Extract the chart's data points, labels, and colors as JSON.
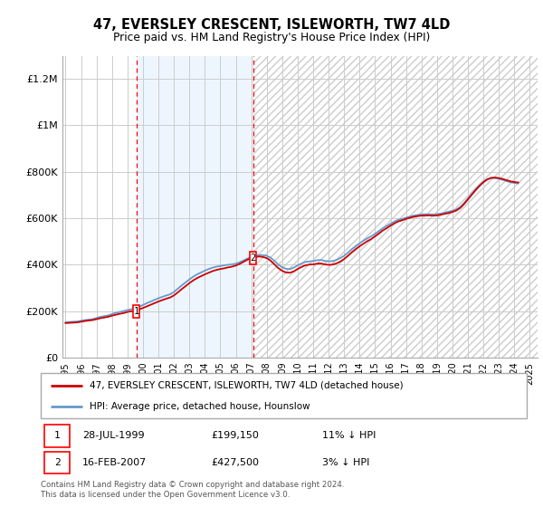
{
  "title": "47, EVERSLEY CRESCENT, ISLEWORTH, TW7 4LD",
  "subtitle": "Price paid vs. HM Land Registry's House Price Index (HPI)",
  "title_fontsize": 11,
  "subtitle_fontsize": 9.5,
  "ylabel_ticks": [
    "£0",
    "£200K",
    "£400K",
    "£600K",
    "£800K",
    "£1M",
    "£1.2M"
  ],
  "ytick_values": [
    0,
    200000,
    400000,
    600000,
    800000,
    1000000,
    1200000
  ],
  "ylim": [
    0,
    1300000
  ],
  "xlim_start": 1994.8,
  "xlim_end": 2025.5,
  "xticks": [
    1995,
    1996,
    1997,
    1998,
    1999,
    2000,
    2001,
    2002,
    2003,
    2004,
    2005,
    2006,
    2007,
    2008,
    2009,
    2010,
    2011,
    2012,
    2013,
    2014,
    2015,
    2016,
    2017,
    2018,
    2019,
    2020,
    2021,
    2022,
    2023,
    2024,
    2025
  ],
  "background_color": "#ffffff",
  "grid_color": "#cccccc",
  "hpi_line_color": "#6699cc",
  "price_line_color": "#cc0000",
  "shade_color": "#ddeeff",
  "shade_alpha": 0.5,
  "sale1_date_num": 1999.57,
  "sale1_price": 199150,
  "sale1_label": "28-JUL-1999",
  "sale1_price_label": "£199,150",
  "sale1_hpi_label": "11% ↓ HPI",
  "sale2_date_num": 2007.12,
  "sale2_price": 427500,
  "sale2_label": "16-FEB-2007",
  "sale2_price_label": "£427,500",
  "sale2_hpi_label": "3% ↓ HPI",
  "legend_line1": "47, EVERSLEY CRESCENT, ISLEWORTH, TW7 4LD (detached house)",
  "legend_line2": "HPI: Average price, detached house, Hounslow",
  "footer_line1": "Contains HM Land Registry data © Crown copyright and database right 2024.",
  "footer_line2": "This data is licensed under the Open Government Licence v3.0.",
  "hpi_years": [
    1995.0,
    1995.25,
    1995.5,
    1995.75,
    1996.0,
    1996.25,
    1996.5,
    1996.75,
    1997.0,
    1997.25,
    1997.5,
    1997.75,
    1998.0,
    1998.25,
    1998.5,
    1998.75,
    1999.0,
    1999.25,
    1999.5,
    1999.75,
    2000.0,
    2000.25,
    2000.5,
    2000.75,
    2001.0,
    2001.25,
    2001.5,
    2001.75,
    2002.0,
    2002.25,
    2002.5,
    2002.75,
    2003.0,
    2003.25,
    2003.5,
    2003.75,
    2004.0,
    2004.25,
    2004.5,
    2004.75,
    2005.0,
    2005.25,
    2005.5,
    2005.75,
    2006.0,
    2006.25,
    2006.5,
    2006.75,
    2007.0,
    2007.25,
    2007.5,
    2007.75,
    2008.0,
    2008.25,
    2008.5,
    2008.75,
    2009.0,
    2009.25,
    2009.5,
    2009.75,
    2010.0,
    2010.25,
    2010.5,
    2010.75,
    2011.0,
    2011.25,
    2011.5,
    2011.75,
    2012.0,
    2012.25,
    2012.5,
    2012.75,
    2013.0,
    2013.25,
    2013.5,
    2013.75,
    2014.0,
    2014.25,
    2014.5,
    2014.75,
    2015.0,
    2015.25,
    2015.5,
    2015.75,
    2016.0,
    2016.25,
    2016.5,
    2016.75,
    2017.0,
    2017.25,
    2017.5,
    2017.75,
    2018.0,
    2018.25,
    2018.5,
    2018.75,
    2019.0,
    2019.25,
    2019.5,
    2019.75,
    2020.0,
    2020.25,
    2020.5,
    2020.75,
    2021.0,
    2021.25,
    2021.5,
    2021.75,
    2022.0,
    2022.25,
    2022.5,
    2022.75,
    2023.0,
    2023.25,
    2023.5,
    2023.75,
    2024.0,
    2024.25
  ],
  "hpi_values": [
    152000,
    153000,
    154000,
    155000,
    158000,
    161000,
    163000,
    165000,
    170000,
    175000,
    178000,
    181000,
    187000,
    192000,
    196000,
    200000,
    204000,
    208000,
    212000,
    218000,
    226000,
    234000,
    241000,
    248000,
    255000,
    261000,
    267000,
    272000,
    282000,
    296000,
    310000,
    323000,
    336000,
    348000,
    358000,
    366000,
    374000,
    381000,
    387000,
    391000,
    394000,
    397000,
    399000,
    401000,
    404000,
    410000,
    418000,
    426000,
    433000,
    438000,
    441000,
    441000,
    438000,
    430000,
    416000,
    400000,
    388000,
    382000,
    381000,
    387000,
    397000,
    405000,
    411000,
    414000,
    415000,
    419000,
    420000,
    416000,
    414000,
    415000,
    420000,
    428000,
    438000,
    452000,
    467000,
    480000,
    492000,
    503000,
    513000,
    522000,
    533000,
    545000,
    557000,
    566000,
    576000,
    586000,
    593000,
    597000,
    602000,
    607000,
    611000,
    614000,
    616000,
    617000,
    617000,
    616000,
    617000,
    620000,
    624000,
    628000,
    632000,
    638000,
    648000,
    665000,
    685000,
    705000,
    725000,
    742000,
    757000,
    768000,
    773000,
    773000,
    770000,
    765000,
    760000,
    755000,
    752000,
    750000
  ],
  "price_years": [
    1995.0,
    1995.25,
    1995.5,
    1995.75,
    1996.0,
    1996.25,
    1996.5,
    1996.75,
    1997.0,
    1997.25,
    1997.5,
    1997.75,
    1998.0,
    1998.25,
    1998.5,
    1998.75,
    1999.0,
    1999.25,
    1999.5,
    1999.75,
    2000.0,
    2000.25,
    2000.5,
    2000.75,
    2001.0,
    2001.25,
    2001.5,
    2001.75,
    2002.0,
    2002.25,
    2002.5,
    2002.75,
    2003.0,
    2003.25,
    2003.5,
    2003.75,
    2004.0,
    2004.25,
    2004.5,
    2004.75,
    2005.0,
    2005.25,
    2005.5,
    2005.75,
    2006.0,
    2006.25,
    2006.5,
    2006.75,
    2007.0,
    2007.25,
    2007.5,
    2007.75,
    2008.0,
    2008.25,
    2008.5,
    2008.75,
    2009.0,
    2009.25,
    2009.5,
    2009.75,
    2010.0,
    2010.25,
    2010.5,
    2010.75,
    2011.0,
    2011.25,
    2011.5,
    2011.75,
    2012.0,
    2012.25,
    2012.5,
    2012.75,
    2013.0,
    2013.25,
    2013.5,
    2013.75,
    2014.0,
    2014.25,
    2014.5,
    2014.75,
    2015.0,
    2015.25,
    2015.5,
    2015.75,
    2016.0,
    2016.25,
    2016.5,
    2016.75,
    2017.0,
    2017.25,
    2017.5,
    2017.75,
    2018.0,
    2018.25,
    2018.5,
    2018.75,
    2019.0,
    2019.25,
    2019.5,
    2019.75,
    2020.0,
    2020.25,
    2020.5,
    2020.75,
    2021.0,
    2021.25,
    2021.5,
    2021.75,
    2022.0,
    2022.25,
    2022.5,
    2022.75,
    2023.0,
    2023.25,
    2023.5,
    2023.75,
    2024.0,
    2024.25
  ],
  "price_values": [
    148000,
    149000,
    150000,
    151000,
    154000,
    157000,
    159000,
    161000,
    165000,
    169000,
    172000,
    175000,
    180000,
    184000,
    188000,
    191000,
    196000,
    199150,
    202000,
    207000,
    213000,
    220000,
    227000,
    234000,
    241000,
    247000,
    253000,
    258000,
    267000,
    280000,
    294000,
    307000,
    320000,
    332000,
    342000,
    350000,
    358000,
    365000,
    372000,
    377000,
    381000,
    384000,
    388000,
    391000,
    396000,
    403000,
    412000,
    421000,
    427500,
    432000,
    435000,
    433000,
    428000,
    417000,
    401000,
    385000,
    373000,
    366000,
    365000,
    371000,
    381000,
    390000,
    397000,
    400000,
    401000,
    404000,
    405000,
    401000,
    399000,
    400000,
    405000,
    413000,
    424000,
    438000,
    453000,
    466000,
    479000,
    490000,
    501000,
    510000,
    522000,
    534000,
    547000,
    557000,
    568000,
    578000,
    586000,
    591000,
    597000,
    602000,
    606000,
    609000,
    611000,
    612000,
    612000,
    611000,
    612000,
    615000,
    619000,
    622000,
    627000,
    633000,
    644000,
    661000,
    681000,
    701000,
    721000,
    739000,
    755000,
    767000,
    774000,
    775000,
    773000,
    769000,
    764000,
    759000,
    756000,
    754000
  ]
}
